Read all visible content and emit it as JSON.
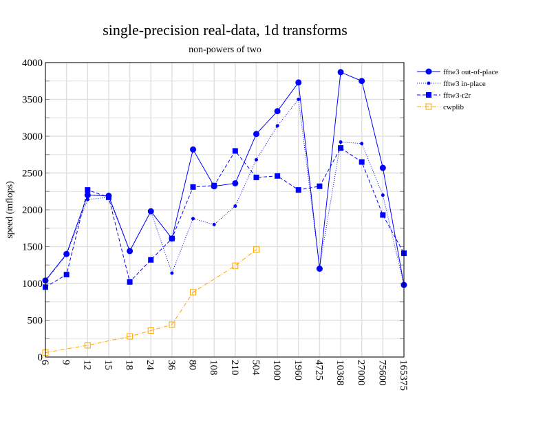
{
  "chart_data": {
    "type": "line",
    "title": "single-precision real-data, 1d transforms",
    "subtitle": "non-powers of two",
    "xlabel": "",
    "ylabel": "speed (mflops)",
    "ylim": [
      0,
      4000
    ],
    "yticks": [
      0,
      500,
      1000,
      1500,
      2000,
      2500,
      3000,
      3500,
      4000
    ],
    "grid": true,
    "legend_position": "outside-right",
    "categories": [
      "6",
      "9",
      "12",
      "15",
      "18",
      "24",
      "36",
      "80",
      "108",
      "210",
      "504",
      "1000",
      "1960",
      "4725",
      "10368",
      "27000",
      "75600",
      "165375"
    ],
    "series": [
      {
        "name": "fftw3 out-of-place",
        "color": "#0000ff",
        "dash": "",
        "marker": "circle",
        "values": [
          1040,
          1400,
          2200,
          2190,
          1440,
          1980,
          1610,
          2820,
          2320,
          2360,
          3030,
          3340,
          3730,
          1200,
          3870,
          3750,
          2570,
          980
        ]
      },
      {
        "name": "fftw3 in-place",
        "color": "#0000ff",
        "dash": "1,2",
        "marker": "dot",
        "values": [
          1030,
          1390,
          2140,
          2170,
          1440,
          1980,
          1140,
          1880,
          1800,
          2050,
          2680,
          3140,
          3500,
          1220,
          2920,
          2900,
          2200,
          980
        ]
      },
      {
        "name": "fftw3-r2r",
        "color": "#0000ff",
        "dash": "5,3",
        "marker": "square",
        "values": [
          950,
          1120,
          2270,
          2170,
          1020,
          1320,
          1610,
          2310,
          2330,
          2800,
          2440,
          2460,
          2270,
          2320,
          2840,
          2650,
          1930,
          1410
        ]
      },
      {
        "name": "cwplib",
        "color": "#ffa500",
        "dash": "6,2,1,2",
        "marker": "open-square",
        "values": [
          60,
          null,
          160,
          null,
          280,
          360,
          440,
          880,
          null,
          1240,
          1460,
          null,
          null,
          null,
          null,
          null,
          null,
          null
        ]
      }
    ]
  }
}
